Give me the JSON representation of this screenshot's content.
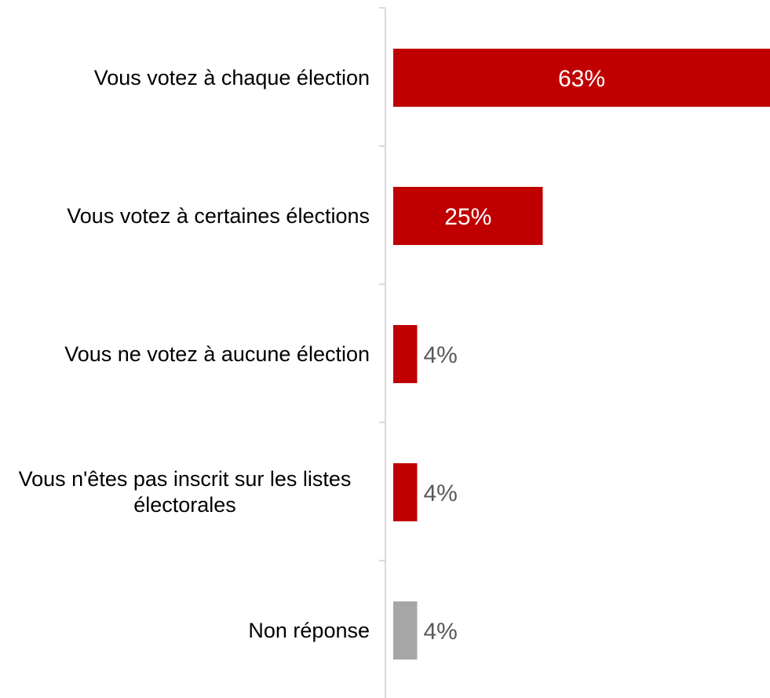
{
  "chart_data": {
    "type": "bar",
    "orientation": "horizontal",
    "categories": [
      "Vous votez à chaque élection",
      "Vous votez à certaines élections",
      "Vous ne votez à aucune élection",
      "Vous n'êtes pas inscrit sur les listes électorales",
      "Non réponse"
    ],
    "values": [
      63,
      25,
      4,
      4,
      4
    ],
    "data_labels": [
      "63%",
      "25%",
      "4%",
      "4%",
      "4%"
    ],
    "unit": "%",
    "xlim": [
      0,
      63
    ],
    "bar_colors": [
      "#c00000",
      "#c00000",
      "#c00000",
      "#c00000",
      "#a6a6a6"
    ],
    "axis_color": "#d9d9d9",
    "label_color_inside": "#ffffff",
    "label_color_outside": "#595959",
    "grid": false,
    "legend": false
  }
}
